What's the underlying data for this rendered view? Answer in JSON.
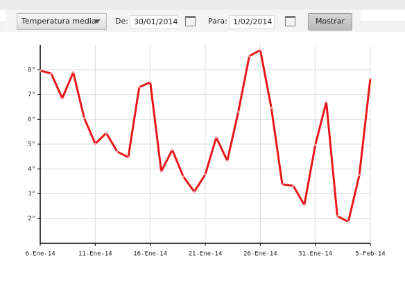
{
  "toolbar": {
    "select": "Temperatura media",
    "from_label": "De:",
    "from_value": "30/01/2014",
    "to_label": "Para:",
    "to_value": "1/02/2014",
    "button": "Mostrar"
  },
  "chart_data": {
    "type": "line",
    "x": [
      "2014-01-06",
      "2014-01-07",
      "2014-01-08",
      "2014-01-09",
      "2014-01-10",
      "2014-01-11",
      "2014-01-12",
      "2014-01-13",
      "2014-01-14",
      "2014-01-15",
      "2014-01-16",
      "2014-01-17",
      "2014-01-18",
      "2014-01-19",
      "2014-01-20",
      "2014-01-21",
      "2014-01-22",
      "2014-01-23",
      "2014-01-24",
      "2014-01-25",
      "2014-01-26",
      "2014-01-27",
      "2014-01-28",
      "2014-01-29",
      "2014-01-30",
      "2014-01-31",
      "2014-02-01",
      "2014-02-02",
      "2014-02-03",
      "2014-02-04",
      "2014-02-05"
    ],
    "series": [
      {
        "color": "#e8171b",
        "values": [
          7.97,
          7.85,
          6.85,
          7.9,
          6.05,
          5.02,
          5.45,
          4.7,
          4.47,
          7.3,
          7.5,
          3.9,
          4.77,
          3.7,
          3.08,
          3.78,
          5.27,
          4.33,
          6.3,
          8.55,
          8.8,
          6.47,
          3.38,
          3.32,
          2.55,
          4.97,
          6.7,
          2.1,
          1.87,
          3.75,
          7.65
        ]
      }
    ],
    "xlim": [
      "2014-01-06",
      "2014-02-05"
    ],
    "xticks": [
      {
        "value": "2014-01-06",
        "label": "6-Ene-14"
      },
      {
        "value": "2014-01-11",
        "label": "11-Ene-14"
      },
      {
        "value": "2014-01-16",
        "label": "16-Ene-14"
      },
      {
        "value": "2014-01-21",
        "label": "21-Ene-14"
      },
      {
        "value": "2014-01-26",
        "label": "26-Ene-14"
      },
      {
        "value": "2014-01-31",
        "label": "31-Ene-14"
      },
      {
        "value": "2014-02-05",
        "label": "5-Feb-14"
      }
    ],
    "ylim": [
      1,
      9
    ],
    "yticks": [
      {
        "value": 2,
        "label": "2°"
      },
      {
        "value": 3,
        "label": "3°"
      },
      {
        "value": 4,
        "label": "4°"
      },
      {
        "value": 5,
        "label": "5°"
      },
      {
        "value": 6,
        "label": "6°"
      },
      {
        "value": 7,
        "label": "7°"
      },
      {
        "value": 8,
        "label": "8°"
      }
    ],
    "grid": true
  }
}
